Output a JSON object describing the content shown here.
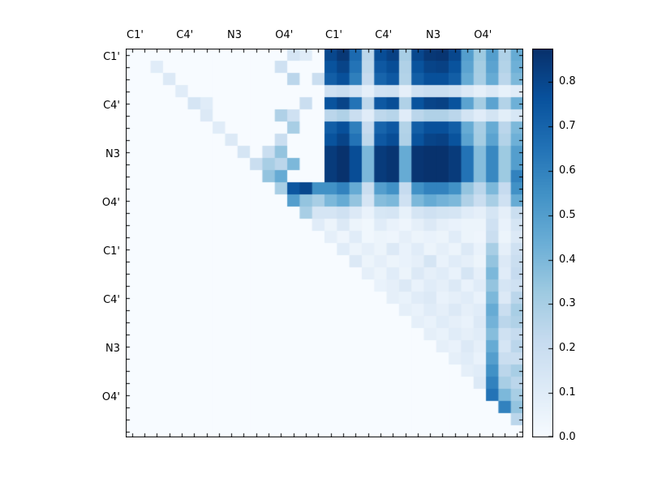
{
  "chart_data": {
    "type": "heatmap",
    "title": "",
    "colormap": "Blues",
    "colormap_stops": [
      "#f7fbff",
      "#deebf7",
      "#c6dbef",
      "#9ecae1",
      "#6baed6",
      "#4292c6",
      "#2171b5",
      "#08519c",
      "#08306b"
    ],
    "vmin": 0.0,
    "vmax": 0.875,
    "grid_size": 32,
    "x_axis_labels": [
      "C1'",
      "C4'",
      "N3",
      "O4'",
      "C1'",
      "C4'",
      "N3",
      "O4'"
    ],
    "y_axis_labels": [
      "C1'",
      "C4'",
      "N3",
      "O4'",
      "C1'",
      "C4'",
      "N3",
      "O4'"
    ],
    "legend_position": "right",
    "colorbar": {
      "tick_values": [
        0.0,
        0.1,
        0.2,
        0.3,
        0.4,
        0.5,
        0.6,
        0.7,
        0.8
      ],
      "tick_labels": [
        "0.0",
        "0.1",
        "0.2",
        "0.3",
        "0.4",
        "0.5",
        "0.6",
        "0.7",
        "0.8"
      ]
    },
    "values": [
      [
        0,
        0,
        0,
        0,
        0,
        0,
        0,
        0,
        0,
        0,
        0,
        0,
        0,
        0.15,
        0.1,
        0,
        0.8,
        0.85,
        0.68,
        0.25,
        0.78,
        0.82,
        0.3,
        0.8,
        0.85,
        0.86,
        0.8,
        0.5,
        0.33,
        0.5,
        0.28,
        0.45
      ],
      [
        0,
        0,
        0.1,
        0,
        0,
        0,
        0,
        0,
        0,
        0,
        0,
        0,
        0.18,
        0,
        0,
        0,
        0.76,
        0.81,
        0.65,
        0.24,
        0.74,
        0.78,
        0.28,
        0.76,
        0.81,
        0.82,
        0.76,
        0.48,
        0.31,
        0.48,
        0.27,
        0.43
      ],
      [
        0,
        0,
        0,
        0.12,
        0,
        0,
        0,
        0,
        0,
        0,
        0,
        0,
        0,
        0.25,
        0,
        0.2,
        0.72,
        0.77,
        0.61,
        0.22,
        0.7,
        0.74,
        0.27,
        0.72,
        0.77,
        0.77,
        0.72,
        0.45,
        0.3,
        0.45,
        0.25,
        0.4
      ],
      [
        0,
        0,
        0,
        0,
        0.1,
        0,
        0,
        0,
        0,
        0,
        0,
        0,
        0,
        0,
        0,
        0,
        0.18,
        0.2,
        0.15,
        0.08,
        0.17,
        0.18,
        0.08,
        0.18,
        0.2,
        0.2,
        0.18,
        0.12,
        0.08,
        0.12,
        0.07,
        0.1
      ],
      [
        0,
        0,
        0,
        0,
        0,
        0.15,
        0.1,
        0,
        0,
        0,
        0,
        0,
        0,
        0,
        0.2,
        0,
        0.76,
        0.81,
        0.65,
        0.24,
        0.74,
        0.78,
        0.28,
        0.76,
        0.81,
        0.82,
        0.76,
        0.48,
        0.31,
        0.48,
        0.27,
        0.43
      ],
      [
        0,
        0,
        0,
        0,
        0,
        0,
        0.12,
        0,
        0,
        0,
        0,
        0,
        0.28,
        0.18,
        0,
        0,
        0.25,
        0.28,
        0.2,
        0.1,
        0.24,
        0.26,
        0.1,
        0.25,
        0.28,
        0.28,
        0.25,
        0.16,
        0.1,
        0.16,
        0.09,
        0.14
      ],
      [
        0,
        0,
        0,
        0,
        0,
        0,
        0,
        0.1,
        0,
        0,
        0,
        0,
        0,
        0.3,
        0,
        0,
        0.72,
        0.77,
        0.61,
        0.22,
        0.7,
        0.74,
        0.27,
        0.72,
        0.77,
        0.77,
        0.72,
        0.45,
        0.3,
        0.45,
        0.25,
        0.4
      ],
      [
        0,
        0,
        0,
        0,
        0,
        0,
        0,
        0,
        0.12,
        0,
        0,
        0,
        0.2,
        0,
        0,
        0,
        0.76,
        0.81,
        0.65,
        0.24,
        0.74,
        0.78,
        0.28,
        0.76,
        0.81,
        0.82,
        0.76,
        0.48,
        0.31,
        0.48,
        0.27,
        0.43
      ],
      [
        0,
        0,
        0,
        0,
        0,
        0,
        0,
        0,
        0,
        0.15,
        0,
        0.2,
        0.35,
        0,
        0,
        0,
        0.84,
        0.87,
        0.78,
        0.4,
        0.84,
        0.86,
        0.45,
        0.86,
        0.87,
        0.87,
        0.84,
        0.65,
        0.38,
        0.58,
        0.33,
        0.5
      ],
      [
        0,
        0,
        0,
        0,
        0,
        0,
        0,
        0,
        0,
        0,
        0.2,
        0.3,
        0.25,
        0.4,
        0,
        0,
        0.84,
        0.87,
        0.78,
        0.4,
        0.84,
        0.86,
        0.45,
        0.86,
        0.87,
        0.87,
        0.84,
        0.65,
        0.38,
        0.58,
        0.33,
        0.5
      ],
      [
        0,
        0,
        0,
        0,
        0,
        0,
        0,
        0,
        0,
        0,
        0,
        0.35,
        0.45,
        0,
        0,
        0,
        0.84,
        0.87,
        0.78,
        0.4,
        0.84,
        0.86,
        0.45,
        0.86,
        0.87,
        0.87,
        0.84,
        0.65,
        0.38,
        0.58,
        0.33,
        0.6
      ],
      [
        0,
        0,
        0,
        0,
        0,
        0,
        0,
        0,
        0,
        0,
        0,
        0,
        0.3,
        0.75,
        0.8,
        0.55,
        0.55,
        0.6,
        0.45,
        0.2,
        0.5,
        0.55,
        0.22,
        0.55,
        0.6,
        0.6,
        0.55,
        0.35,
        0.25,
        0.4,
        0.22,
        0.55
      ],
      [
        0,
        0,
        0,
        0,
        0,
        0,
        0,
        0,
        0,
        0,
        0,
        0,
        0,
        0.5,
        0.35,
        0.3,
        0.4,
        0.45,
        0.35,
        0.15,
        0.38,
        0.4,
        0.18,
        0.4,
        0.45,
        0.42,
        0.4,
        0.28,
        0.2,
        0.3,
        0.18,
        0.45
      ],
      [
        0,
        0,
        0,
        0,
        0,
        0,
        0,
        0,
        0,
        0,
        0,
        0,
        0,
        0,
        0.3,
        0.15,
        0.15,
        0.18,
        0.12,
        0.06,
        0.14,
        0.15,
        0.07,
        0.15,
        0.18,
        0.16,
        0.15,
        0.1,
        0.08,
        0.15,
        0.08,
        0.2
      ],
      [
        0,
        0,
        0,
        0,
        0,
        0,
        0,
        0,
        0,
        0,
        0,
        0,
        0,
        0,
        0,
        0.1,
        0.05,
        0.12,
        0.05,
        0.03,
        0.1,
        0.06,
        0.04,
        0.08,
        0.12,
        0.08,
        0.06,
        0.05,
        0.05,
        0.18,
        0.06,
        0.15
      ],
      [
        0,
        0,
        0,
        0,
        0,
        0,
        0,
        0,
        0,
        0,
        0,
        0,
        0,
        0,
        0,
        0,
        0.08,
        0.04,
        0.1,
        0.03,
        0.05,
        0.04,
        0.08,
        0.05,
        0.06,
        0.05,
        0.1,
        0.05,
        0.04,
        0.2,
        0.05,
        0.12
      ],
      [
        0,
        0,
        0,
        0,
        0,
        0,
        0,
        0,
        0,
        0,
        0,
        0,
        0,
        0,
        0,
        0,
        0,
        0.1,
        0.05,
        0.08,
        0.05,
        0.12,
        0.06,
        0.1,
        0.05,
        0.08,
        0.05,
        0.12,
        0.06,
        0.3,
        0.08,
        0.18
      ],
      [
        0,
        0,
        0,
        0,
        0,
        0,
        0,
        0,
        0,
        0,
        0,
        0,
        0,
        0,
        0,
        0,
        0,
        0,
        0.12,
        0.05,
        0.08,
        0.05,
        0.06,
        0.08,
        0.15,
        0.06,
        0.1,
        0.08,
        0.05,
        0.35,
        0.12,
        0.2
      ],
      [
        0,
        0,
        0,
        0,
        0,
        0,
        0,
        0,
        0,
        0,
        0,
        0,
        0,
        0,
        0,
        0,
        0,
        0,
        0,
        0.08,
        0.05,
        0.1,
        0.05,
        0.12,
        0.08,
        0.1,
        0.06,
        0.15,
        0.08,
        0.4,
        0.1,
        0.22
      ],
      [
        0,
        0,
        0,
        0,
        0,
        0,
        0,
        0,
        0,
        0,
        0,
        0,
        0,
        0,
        0,
        0,
        0,
        0,
        0,
        0,
        0.06,
        0.08,
        0.12,
        0.06,
        0.1,
        0.08,
        0.12,
        0.06,
        0.1,
        0.35,
        0.15,
        0.18
      ],
      [
        0,
        0,
        0,
        0,
        0,
        0,
        0,
        0,
        0,
        0,
        0,
        0,
        0,
        0,
        0,
        0,
        0,
        0,
        0,
        0,
        0,
        0.08,
        0.06,
        0.1,
        0.12,
        0.06,
        0.08,
        0.1,
        0.06,
        0.4,
        0.12,
        0.25
      ],
      [
        0,
        0,
        0,
        0,
        0,
        0,
        0,
        0,
        0,
        0,
        0,
        0,
        0,
        0,
        0,
        0,
        0,
        0,
        0,
        0,
        0,
        0,
        0.08,
        0.06,
        0.1,
        0.08,
        0.12,
        0.08,
        0.1,
        0.45,
        0.2,
        0.3
      ],
      [
        0,
        0,
        0,
        0,
        0,
        0,
        0,
        0,
        0,
        0,
        0,
        0,
        0,
        0,
        0,
        0,
        0,
        0,
        0,
        0,
        0,
        0,
        0,
        0.08,
        0.06,
        0.1,
        0.08,
        0.06,
        0.12,
        0.42,
        0.25,
        0.28
      ],
      [
        0,
        0,
        0,
        0,
        0,
        0,
        0,
        0,
        0,
        0,
        0,
        0,
        0,
        0,
        0,
        0,
        0,
        0,
        0,
        0,
        0,
        0,
        0,
        0,
        0.08,
        0.06,
        0.1,
        0.08,
        0.1,
        0.38,
        0.18,
        0.22
      ],
      [
        0,
        0,
        0,
        0,
        0,
        0,
        0,
        0,
        0,
        0,
        0,
        0,
        0,
        0,
        0,
        0,
        0,
        0,
        0,
        0,
        0,
        0,
        0,
        0,
        0,
        0.08,
        0.06,
        0.12,
        0.08,
        0.45,
        0.15,
        0.25
      ],
      [
        0,
        0,
        0,
        0,
        0,
        0,
        0,
        0,
        0,
        0,
        0,
        0,
        0,
        0,
        0,
        0,
        0,
        0,
        0,
        0,
        0,
        0,
        0,
        0,
        0,
        0,
        0.08,
        0.1,
        0.06,
        0.5,
        0.2,
        0.2
      ],
      [
        0,
        0,
        0,
        0,
        0,
        0,
        0,
        0,
        0,
        0,
        0,
        0,
        0,
        0,
        0,
        0,
        0,
        0,
        0,
        0,
        0,
        0,
        0,
        0,
        0,
        0,
        0,
        0.08,
        0.1,
        0.55,
        0.25,
        0.3
      ],
      [
        0,
        0,
        0,
        0,
        0,
        0,
        0,
        0,
        0,
        0,
        0,
        0,
        0,
        0,
        0,
        0,
        0,
        0,
        0,
        0,
        0,
        0,
        0,
        0,
        0,
        0,
        0,
        0,
        0.12,
        0.6,
        0.3,
        0.25
      ],
      [
        0,
        0,
        0,
        0,
        0,
        0,
        0,
        0,
        0,
        0,
        0,
        0,
        0,
        0,
        0,
        0,
        0,
        0,
        0,
        0,
        0,
        0,
        0,
        0,
        0,
        0,
        0,
        0,
        0,
        0.65,
        0.4,
        0.3
      ],
      [
        0,
        0,
        0,
        0,
        0,
        0,
        0,
        0,
        0,
        0,
        0,
        0,
        0,
        0,
        0,
        0,
        0,
        0,
        0,
        0,
        0,
        0,
        0,
        0,
        0,
        0,
        0,
        0,
        0,
        0,
        0.6,
        0.35
      ],
      [
        0,
        0,
        0,
        0,
        0,
        0,
        0,
        0,
        0,
        0,
        0,
        0,
        0,
        0,
        0,
        0,
        0,
        0,
        0,
        0,
        0,
        0,
        0,
        0,
        0,
        0,
        0,
        0,
        0,
        0,
        0,
        0.25
      ],
      [
        0,
        0,
        0,
        0,
        0,
        0,
        0,
        0,
        0,
        0,
        0,
        0,
        0,
        0,
        0,
        0,
        0,
        0,
        0,
        0,
        0,
        0,
        0,
        0,
        0,
        0,
        0,
        0,
        0,
        0,
        0,
        0
      ]
    ]
  }
}
